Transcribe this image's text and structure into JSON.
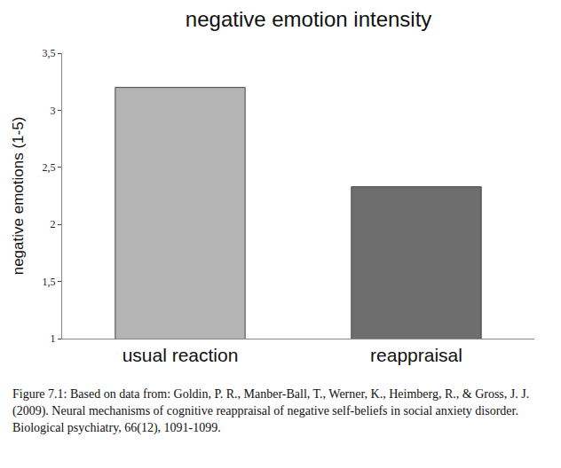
{
  "chart_data": {
    "type": "bar",
    "title": "negative emotion intensity",
    "y_label": "negative emotions (1-5)",
    "categories": [
      "usual reaction",
      "reappraisal"
    ],
    "values": [
      3.2,
      2.33
    ],
    "colors": [
      "#b4b4b4",
      "#6e6e6e"
    ],
    "ylim": [
      1,
      3.5
    ],
    "yticks": [
      1,
      {
        "value": 1.5,
        "label": "1,5"
      },
      2,
      {
        "value": 2.5,
        "label": "2,5"
      },
      3,
      {
        "value": 3.5,
        "label": "3,5"
      }
    ],
    "grid": false,
    "annotations": [
      "Figure 7.1: Based on data from: Goldin, P. R., Manber-Ball, T., Werner, K., Heimberg, R., & Gross, J. J. (2009). Neural mechanisms of cognitive reappraisal of negative self-beliefs in social anxiety disorder. Biological psychiatry, 66(12), 1091-1099."
    ]
  }
}
